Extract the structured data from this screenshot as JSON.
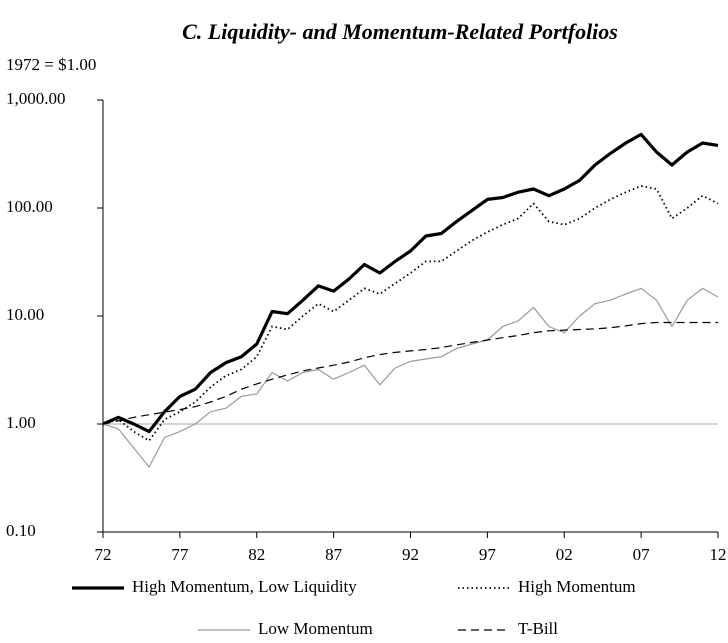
{
  "chart_data": {
    "type": "line",
    "title": "C. Liquidity- and Momentum-Related Portfolios",
    "subtitle": "1972 = $1.00",
    "log_scale": true,
    "reference_line": 1,
    "x": [
      1972,
      1973,
      1974,
      1975,
      1976,
      1977,
      1978,
      1979,
      1980,
      1981,
      1982,
      1983,
      1984,
      1985,
      1986,
      1987,
      1988,
      1989,
      1990,
      1991,
      1992,
      1993,
      1994,
      1995,
      1996,
      1997,
      1998,
      1999,
      2000,
      2001,
      2002,
      2003,
      2004,
      2005,
      2006,
      2007,
      2008,
      2009,
      2010,
      2011,
      2012
    ],
    "xlim": [
      1972,
      2012
    ],
    "xticks": [
      {
        "value": 1972,
        "label": "72"
      },
      {
        "value": 1977,
        "label": "77"
      },
      {
        "value": 1982,
        "label": "82"
      },
      {
        "value": 1987,
        "label": "87"
      },
      {
        "value": 1992,
        "label": "92"
      },
      {
        "value": 1997,
        "label": "97"
      },
      {
        "value": 2002,
        "label": "02"
      },
      {
        "value": 2007,
        "label": "07"
      },
      {
        "value": 2012,
        "label": "12"
      }
    ],
    "ylim": [
      0.1,
      1000
    ],
    "yticks": [
      {
        "value": 0.1,
        "label": "0.10"
      },
      {
        "value": 1,
        "label": "1.00"
      },
      {
        "value": 10,
        "label": "10.00"
      },
      {
        "value": 100,
        "label": "100.00"
      },
      {
        "value": 1000,
        "label": "1,000.00"
      }
    ],
    "series": [
      {
        "name": "High Momentum, Low Liquidity",
        "color": "#000000",
        "style": "solid",
        "width": 3.2,
        "values": [
          1.0,
          1.15,
          1.0,
          0.85,
          1.3,
          1.8,
          2.1,
          3.0,
          3.7,
          4.2,
          5.5,
          11,
          10.5,
          14,
          19,
          17,
          22,
          30,
          25,
          32,
          40,
          55,
          58,
          75,
          95,
          120,
          125,
          140,
          150,
          130,
          150,
          180,
          250,
          320,
          400,
          480,
          330,
          250,
          330,
          400,
          380
        ]
      },
      {
        "name": "High Momentum",
        "color": "#000000",
        "style": "dotted",
        "width": 1.8,
        "values": [
          1.0,
          1.1,
          0.85,
          0.7,
          1.1,
          1.3,
          1.6,
          2.2,
          2.8,
          3.2,
          4.2,
          8,
          7.5,
          10,
          13,
          11,
          14,
          18,
          16,
          20,
          25,
          32,
          32,
          40,
          50,
          60,
          70,
          80,
          110,
          75,
          70,
          80,
          100,
          120,
          140,
          160,
          150,
          80,
          100,
          130,
          110
        ]
      },
      {
        "name": "Low Momentum",
        "color": "#999999",
        "style": "solid",
        "width": 1.2,
        "values": [
          1.0,
          0.9,
          0.6,
          0.4,
          0.75,
          0.85,
          1.0,
          1.3,
          1.4,
          1.8,
          1.9,
          3.0,
          2.5,
          3.0,
          3.2,
          2.6,
          3.0,
          3.5,
          2.3,
          3.3,
          3.8,
          4.0,
          4.2,
          5.0,
          5.5,
          6.0,
          8,
          9,
          12,
          8,
          7,
          10,
          13,
          14,
          16,
          18,
          14,
          8,
          14,
          18,
          15
        ]
      },
      {
        "name": "T-Bill",
        "color": "#000000",
        "style": "dashed",
        "width": 1.2,
        "values": [
          1.0,
          1.07,
          1.15,
          1.22,
          1.29,
          1.36,
          1.45,
          1.6,
          1.8,
          2.1,
          2.35,
          2.6,
          2.85,
          3.1,
          3.3,
          3.5,
          3.75,
          4.1,
          4.4,
          4.6,
          4.75,
          4.9,
          5.1,
          5.4,
          5.7,
          6.0,
          6.3,
          6.6,
          7.0,
          7.3,
          7.4,
          7.5,
          7.6,
          7.8,
          8.1,
          8.5,
          8.7,
          8.7,
          8.7,
          8.7,
          8.7
        ]
      }
    ]
  }
}
